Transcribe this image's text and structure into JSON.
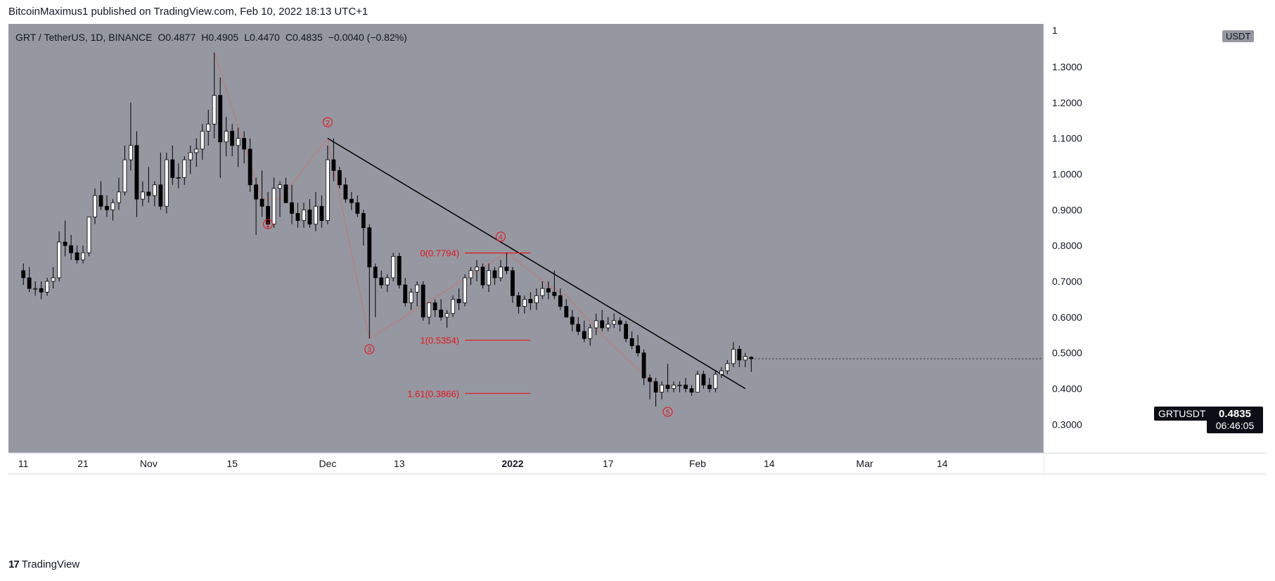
{
  "header": {
    "publish_line": "BitcoinMaximus1 published on TradingView.com, Feb 10, 2022 18:13 UTC+1"
  },
  "legend": {
    "symbol": "GRT / TetherUS, 1D, BINANCE",
    "open_label": "O",
    "open": "0.4877",
    "high_label": "H",
    "high": "0.4905",
    "low_label": "L",
    "low": "0.4470",
    "close_label": "C",
    "close": "0.4835",
    "change": "−0.0040 (−0.82%)"
  },
  "price_axis": {
    "currency": "USDT",
    "top_partial_label": "1"
  },
  "last_price": {
    "symbol": "GRTUSDT",
    "price": "0.4835",
    "countdown": "06:46:05"
  },
  "footer": {
    "brand": "TradingView",
    "logo_glyph": "17"
  },
  "colors": {
    "chart_bg": "#9598a1",
    "candle_up": "#ffffff",
    "candle_down": "#000000",
    "wave_line": "#c27a7a",
    "annotation_red": "#e8141a",
    "trendline": "#000000"
  },
  "chart_data": {
    "type": "candlestick",
    "title": "GRT / TetherUS, 1D, BINANCE",
    "ylim": [
      0.22,
      1.42
    ],
    "y_ticks": [
      0.3,
      0.4,
      0.5,
      0.6,
      0.7,
      0.8,
      0.9,
      1.0,
      1.1,
      1.2,
      1.3
    ],
    "y_tick_labels": [
      "0.3000",
      "0.4000",
      "0.5000",
      "0.6000",
      "0.7000",
      "0.8000",
      "0.9000",
      "1.0000",
      "1.1000",
      "1.2000",
      "1.3000"
    ],
    "x_ticks": [
      {
        "day": 0,
        "label": "11"
      },
      {
        "day": 10,
        "label": "21"
      },
      {
        "day": 21,
        "label": "Nov"
      },
      {
        "day": 35,
        "label": "15"
      },
      {
        "day": 51,
        "label": "Dec"
      },
      {
        "day": 63,
        "label": "13"
      },
      {
        "day": 82,
        "label": "2022"
      },
      {
        "day": 98,
        "label": "17"
      },
      {
        "day": 113,
        "label": "Feb"
      },
      {
        "day": 125,
        "label": "14"
      },
      {
        "day": 141,
        "label": "Mar"
      },
      {
        "day": 154,
        "label": "14"
      }
    ],
    "xlim": [
      -2.5,
      171
    ],
    "candles": [
      [
        0.73,
        0.75,
        0.69,
        0.71
      ],
      [
        0.71,
        0.74,
        0.67,
        0.68
      ],
      [
        0.68,
        0.7,
        0.66,
        0.68
      ],
      [
        0.68,
        0.7,
        0.65,
        0.67
      ],
      [
        0.67,
        0.71,
        0.66,
        0.7
      ],
      [
        0.7,
        0.74,
        0.68,
        0.71
      ],
      [
        0.71,
        0.84,
        0.7,
        0.81
      ],
      [
        0.81,
        0.87,
        0.77,
        0.8
      ],
      [
        0.8,
        0.83,
        0.76,
        0.78
      ],
      [
        0.78,
        0.8,
        0.75,
        0.76
      ],
      [
        0.76,
        0.8,
        0.75,
        0.78
      ],
      [
        0.78,
        0.88,
        0.77,
        0.88
      ],
      [
        0.88,
        0.96,
        0.86,
        0.94
      ],
      [
        0.94,
        0.98,
        0.9,
        0.91
      ],
      [
        0.91,
        0.94,
        0.88,
        0.9
      ],
      [
        0.9,
        0.93,
        0.87,
        0.92
      ],
      [
        0.92,
        0.99,
        0.9,
        0.95
      ],
      [
        0.95,
        1.08,
        0.94,
        1.04
      ],
      [
        1.04,
        1.2,
        1.01,
        1.08
      ],
      [
        1.08,
        1.12,
        0.88,
        0.93
      ],
      [
        0.93,
        0.98,
        0.91,
        0.95
      ],
      [
        0.95,
        1.02,
        0.92,
        0.94
      ],
      [
        0.94,
        0.98,
        0.91,
        0.97
      ],
      [
        0.97,
        1.06,
        0.9,
        0.91
      ],
      [
        0.91,
        1.06,
        0.89,
        1.04
      ],
      [
        1.04,
        1.08,
        0.97,
        0.99
      ],
      [
        0.99,
        1.03,
        0.96,
        0.99
      ],
      [
        0.99,
        1.05,
        0.97,
        1.04
      ],
      [
        1.04,
        1.08,
        1.0,
        1.06
      ],
      [
        1.06,
        1.1,
        1.02,
        1.07
      ],
      [
        1.07,
        1.14,
        1.04,
        1.12
      ],
      [
        1.12,
        1.18,
        1.08,
        1.14
      ],
      [
        1.14,
        1.34,
        1.1,
        1.22
      ],
      [
        1.22,
        1.27,
        0.99,
        1.09
      ],
      [
        1.09,
        1.16,
        1.05,
        1.12
      ],
      [
        1.12,
        1.14,
        1.05,
        1.08
      ],
      [
        1.08,
        1.13,
        1.02,
        1.1
      ],
      [
        1.1,
        1.12,
        1.03,
        1.07
      ],
      [
        1.07,
        1.1,
        0.95,
        0.97
      ],
      [
        0.97,
        0.99,
        0.83,
        0.93
      ],
      [
        0.93,
        1.01,
        0.88,
        0.91
      ],
      [
        0.91,
        0.95,
        0.85,
        0.86
      ],
      [
        0.86,
        0.99,
        0.85,
        0.96
      ],
      [
        0.96,
        0.98,
        0.88,
        0.97
      ],
      [
        0.97,
        0.99,
        0.93,
        0.92
      ],
      [
        0.92,
        0.97,
        0.86,
        0.89
      ],
      [
        0.89,
        0.92,
        0.85,
        0.87
      ],
      [
        0.87,
        0.92,
        0.85,
        0.9
      ],
      [
        0.9,
        0.93,
        0.85,
        0.86
      ],
      [
        0.86,
        0.95,
        0.84,
        0.91
      ],
      [
        0.91,
        0.94,
        0.85,
        0.87
      ],
      [
        0.87,
        1.08,
        0.86,
        1.04
      ],
      [
        1.04,
        1.1,
        0.98,
        1.01
      ],
      [
        1.01,
        1.02,
        0.96,
        0.97
      ],
      [
        0.97,
        0.99,
        0.92,
        0.93
      ],
      [
        0.93,
        0.95,
        0.9,
        0.92
      ],
      [
        0.92,
        0.94,
        0.88,
        0.89
      ],
      [
        0.89,
        0.9,
        0.8,
        0.85
      ],
      [
        0.85,
        0.86,
        0.54,
        0.74
      ],
      [
        0.74,
        0.75,
        0.6,
        0.71
      ],
      [
        0.71,
        0.73,
        0.68,
        0.69
      ],
      [
        0.69,
        0.72,
        0.67,
        0.71
      ],
      [
        0.71,
        0.78,
        0.7,
        0.77
      ],
      [
        0.77,
        0.78,
        0.68,
        0.69
      ],
      [
        0.69,
        0.71,
        0.63,
        0.64
      ],
      [
        0.64,
        0.68,
        0.62,
        0.67
      ],
      [
        0.67,
        0.7,
        0.63,
        0.69
      ],
      [
        0.69,
        0.7,
        0.59,
        0.6
      ],
      [
        0.6,
        0.64,
        0.58,
        0.64
      ],
      [
        0.64,
        0.65,
        0.6,
        0.62
      ],
      [
        0.62,
        0.65,
        0.59,
        0.6
      ],
      [
        0.6,
        0.62,
        0.57,
        0.61
      ],
      [
        0.61,
        0.66,
        0.6,
        0.65
      ],
      [
        0.65,
        0.68,
        0.62,
        0.64
      ],
      [
        0.64,
        0.72,
        0.63,
        0.71
      ],
      [
        0.71,
        0.74,
        0.69,
        0.73
      ],
      [
        0.73,
        0.76,
        0.7,
        0.74
      ],
      [
        0.74,
        0.75,
        0.68,
        0.69
      ],
      [
        0.69,
        0.75,
        0.67,
        0.73
      ],
      [
        0.73,
        0.74,
        0.69,
        0.71
      ],
      [
        0.71,
        0.76,
        0.7,
        0.74
      ],
      [
        0.74,
        0.78,
        0.72,
        0.73
      ],
      [
        0.73,
        0.74,
        0.64,
        0.66
      ],
      [
        0.66,
        0.67,
        0.61,
        0.63
      ],
      [
        0.63,
        0.66,
        0.61,
        0.65
      ],
      [
        0.65,
        0.67,
        0.62,
        0.64
      ],
      [
        0.64,
        0.68,
        0.62,
        0.66
      ],
      [
        0.66,
        0.7,
        0.65,
        0.68
      ],
      [
        0.68,
        0.7,
        0.65,
        0.67
      ],
      [
        0.67,
        0.73,
        0.65,
        0.66
      ],
      [
        0.66,
        0.68,
        0.62,
        0.63
      ],
      [
        0.63,
        0.65,
        0.6,
        0.6
      ],
      [
        0.6,
        0.62,
        0.56,
        0.58
      ],
      [
        0.58,
        0.6,
        0.55,
        0.56
      ],
      [
        0.56,
        0.59,
        0.53,
        0.54
      ],
      [
        0.54,
        0.58,
        0.52,
        0.57
      ],
      [
        0.57,
        0.61,
        0.55,
        0.59
      ],
      [
        0.59,
        0.62,
        0.56,
        0.57
      ],
      [
        0.57,
        0.6,
        0.56,
        0.58
      ],
      [
        0.58,
        0.61,
        0.57,
        0.59
      ],
      [
        0.59,
        0.6,
        0.56,
        0.58
      ],
      [
        0.58,
        0.59,
        0.53,
        0.54
      ],
      [
        0.54,
        0.56,
        0.51,
        0.52
      ],
      [
        0.52,
        0.55,
        0.49,
        0.5
      ],
      [
        0.5,
        0.51,
        0.41,
        0.43
      ],
      [
        0.43,
        0.44,
        0.37,
        0.42
      ],
      [
        0.42,
        0.43,
        0.35,
        0.39
      ],
      [
        0.39,
        0.42,
        0.37,
        0.41
      ],
      [
        0.41,
        0.47,
        0.39,
        0.4
      ],
      [
        0.4,
        0.42,
        0.39,
        0.41
      ],
      [
        0.41,
        0.42,
        0.39,
        0.41
      ],
      [
        0.41,
        0.43,
        0.39,
        0.4
      ],
      [
        0.4,
        0.41,
        0.38,
        0.39
      ],
      [
        0.39,
        0.45,
        0.39,
        0.44
      ],
      [
        0.44,
        0.45,
        0.4,
        0.41
      ],
      [
        0.41,
        0.43,
        0.39,
        0.4
      ],
      [
        0.4,
        0.45,
        0.39,
        0.44
      ],
      [
        0.44,
        0.46,
        0.43,
        0.45
      ],
      [
        0.45,
        0.48,
        0.44,
        0.47
      ],
      [
        0.47,
        0.53,
        0.46,
        0.51
      ],
      [
        0.51,
        0.52,
        0.46,
        0.48
      ],
      [
        0.48,
        0.5,
        0.46,
        0.49
      ],
      [
        0.4877,
        0.4905,
        0.447,
        0.4835
      ]
    ],
    "wave_path": [
      {
        "day": 32,
        "price": 1.34
      },
      {
        "day": 40,
        "price": 0.93
      },
      {
        "day": 43,
        "price": 0.93
      },
      {
        "day": 51,
        "price": 1.1
      },
      {
        "day": 58,
        "price": 0.54
      },
      {
        "day": 81,
        "price": 0.78
      },
      {
        "day": 88,
        "price": 0.69
      },
      {
        "day": 91,
        "price": 0.66
      },
      {
        "day": 97,
        "price": 0.55
      },
      {
        "day": 107,
        "price": 0.39
      }
    ],
    "wave_labels": [
      {
        "label": "1",
        "day": 41,
        "price": 0.86
      },
      {
        "label": "2",
        "day": 51,
        "price": 1.145
      },
      {
        "label": "3",
        "day": 58,
        "price": 0.51
      },
      {
        "label": "4",
        "day": 80,
        "price": 0.825
      },
      {
        "label": "5",
        "day": 108,
        "price": 0.335
      }
    ],
    "trendline": {
      "start": {
        "day": 51,
        "price": 1.1
      },
      "end": {
        "day": 121,
        "price": 0.4
      }
    },
    "fib_levels": [
      {
        "label": "0(0.7794)",
        "price": 0.7794
      },
      {
        "label": "1(0.5354)",
        "price": 0.5354
      },
      {
        "label": "1.61(0.3866)",
        "price": 0.3866
      }
    ],
    "fib_line_days": [
      74,
      85
    ]
  }
}
